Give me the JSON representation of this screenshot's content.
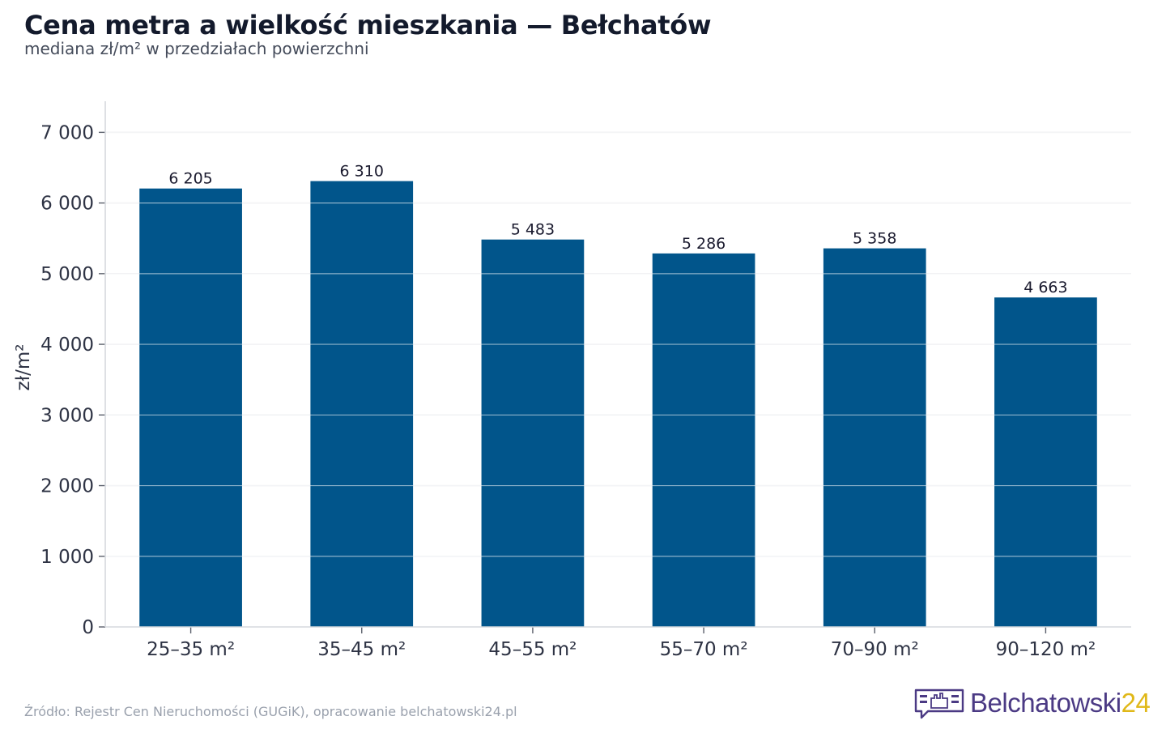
{
  "header": {
    "title": "Cena metra a wielkość mieszkania — Bełchatów",
    "subtitle": "mediana zł/m² w przedziałach powierzchni"
  },
  "chart_data": {
    "type": "bar",
    "title": "Cena metra a wielkość mieszkania — Bełchatów",
    "subtitle": "mediana zł/m² w przedziałach powierzchni",
    "xlabel": "",
    "ylabel": "zł/m²",
    "categories": [
      "25–35 m²",
      "35–45 m²",
      "45–55 m²",
      "55–70 m²",
      "70–90 m²",
      "90–120 m²"
    ],
    "values": [
      6205,
      6310,
      5483,
      5286,
      5358,
      4663
    ],
    "value_labels": [
      "6 205",
      "6 310",
      "5 483",
      "5 286",
      "5 358",
      "4 663"
    ],
    "ylim": [
      0,
      7440
    ],
    "yticks": [
      0,
      1000,
      2000,
      3000,
      4000,
      5000,
      6000,
      7000
    ],
    "ytick_labels": [
      "0",
      "1 000",
      "2 000",
      "3 000",
      "4 000",
      "5 000",
      "6 000",
      "7 000"
    ],
    "grid": true,
    "legend": "none",
    "colors": {
      "bar": "#01558b",
      "grid": "#e4e6ea",
      "axis": "#d6d9de"
    }
  },
  "footer": {
    "source": "Źródło: Rejestr Cen Nieruchomości (GUGiK), opracowanie belchatowski24.pl",
    "brand_main": "Belchatowski",
    "brand_accent": "24"
  }
}
